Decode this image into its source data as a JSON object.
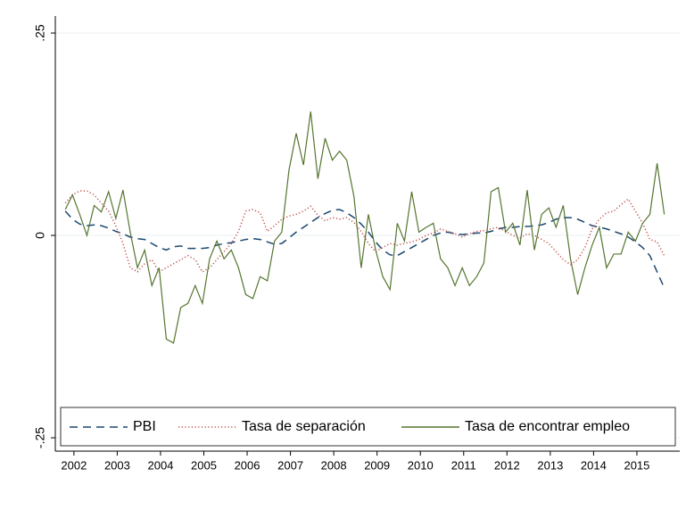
{
  "chart_data": {
    "type": "line",
    "x": [
      2001.8,
      2001.967,
      2002.133,
      2002.3,
      2002.467,
      2002.633,
      2002.8,
      2002.967,
      2003.133,
      2003.3,
      2003.467,
      2003.633,
      2003.8,
      2003.967,
      2004.133,
      2004.3,
      2004.467,
      2004.633,
      2004.8,
      2004.967,
      2005.133,
      2005.3,
      2005.467,
      2005.633,
      2005.8,
      2005.967,
      2006.133,
      2006.3,
      2006.467,
      2006.633,
      2006.8,
      2006.967,
      2007.133,
      2007.3,
      2007.467,
      2007.633,
      2007.8,
      2007.967,
      2008.133,
      2008.3,
      2008.467,
      2008.633,
      2008.8,
      2008.967,
      2009.133,
      2009.3,
      2009.467,
      2009.633,
      2009.8,
      2009.967,
      2010.133,
      2010.3,
      2010.467,
      2010.633,
      2010.8,
      2010.967,
      2011.133,
      2011.3,
      2011.467,
      2011.633,
      2011.8,
      2011.967,
      2012.133,
      2012.3,
      2012.467,
      2012.633,
      2012.8,
      2012.967,
      2013.133,
      2013.3,
      2013.467,
      2013.633,
      2013.8,
      2013.967,
      2014.133,
      2014.3,
      2014.467,
      2014.633,
      2014.8,
      2014.967,
      2015.133,
      2015.3,
      2015.467,
      2015.633
    ],
    "series": [
      {
        "name": "PBI",
        "color": "#1a476f",
        "dash": "dashed",
        "values": [
          0.03,
          0.02,
          0.014,
          0.012,
          0.013,
          0.012,
          0.009,
          0.005,
          0.002,
          -0.002,
          -0.004,
          -0.005,
          -0.01,
          -0.015,
          -0.018,
          -0.014,
          -0.013,
          -0.016,
          -0.016,
          -0.016,
          -0.015,
          -0.012,
          -0.01,
          -0.009,
          -0.007,
          -0.005,
          -0.004,
          -0.005,
          -0.008,
          -0.011,
          -0.01,
          -0.003,
          0.004,
          0.01,
          0.016,
          0.022,
          0.027,
          0.031,
          0.032,
          0.028,
          0.022,
          0.014,
          0.004,
          -0.008,
          -0.018,
          -0.024,
          -0.025,
          -0.02,
          -0.015,
          -0.01,
          -0.005,
          0,
          0.003,
          0.004,
          0.002,
          0.001,
          0.002,
          0.003,
          0.003,
          0.005,
          0.008,
          0.01,
          0.01,
          0.011,
          0.011,
          0.012,
          0.013,
          0.016,
          0.02,
          0.022,
          0.022,
          0.02,
          0.016,
          0.012,
          0.01,
          0.008,
          0.005,
          0.002,
          -0.002,
          -0.008,
          -0.015,
          -0.025,
          -0.045,
          -0.065
        ]
      },
      {
        "name": "Tasa de separación",
        "color": "#c0504d",
        "dash": "dotted",
        "values": [
          0.04,
          0.05,
          0.055,
          0.055,
          0.05,
          0.04,
          0.03,
          0.012,
          -0.01,
          -0.04,
          -0.045,
          -0.035,
          -0.03,
          -0.045,
          -0.04,
          -0.035,
          -0.03,
          -0.025,
          -0.03,
          -0.045,
          -0.04,
          -0.03,
          -0.02,
          -0.01,
          0.005,
          0.03,
          0.032,
          0.028,
          0.005,
          0.012,
          0.02,
          0.024,
          0.026,
          0.03,
          0.036,
          0.025,
          0.018,
          0.022,
          0.02,
          0.022,
          0.016,
          0.005,
          -0.01,
          -0.02,
          -0.015,
          -0.01,
          -0.012,
          -0.01,
          -0.008,
          -0.005,
          0,
          0.003,
          0.008,
          0.005,
          0.002,
          -0.002,
          0.002,
          0.005,
          0.006,
          0.008,
          0.01,
          0.005,
          0,
          -0.003,
          0.002,
          0,
          -0.005,
          -0.01,
          -0.02,
          -0.03,
          -0.036,
          -0.03,
          -0.015,
          0.008,
          0.02,
          0.028,
          0.03,
          0.038,
          0.045,
          0.03,
          0.015,
          -0.005,
          -0.008,
          -0.025
        ]
      },
      {
        "name": "Tasa de encontrar empleo",
        "color": "#55752f",
        "dash": "solid",
        "values": [
          0.032,
          0.05,
          0.026,
          0,
          0.037,
          0.029,
          0.054,
          0.021,
          0.056,
          0.004,
          -0.04,
          -0.018,
          -0.062,
          -0.04,
          -0.128,
          -0.133,
          -0.089,
          -0.084,
          -0.062,
          -0.084,
          -0.029,
          -0.007,
          -0.029,
          -0.018,
          -0.04,
          -0.073,
          -0.078,
          -0.051,
          -0.056,
          -0.007,
          0.004,
          0.081,
          0.126,
          0.087,
          0.153,
          0.07,
          0.12,
          0.093,
          0.104,
          0.093,
          0.048,
          -0.04,
          0.026,
          -0.018,
          -0.051,
          -0.067,
          0.015,
          -0.007,
          0.054,
          0.004,
          0.01,
          0.015,
          -0.029,
          -0.04,
          -0.062,
          -0.04,
          -0.062,
          -0.051,
          -0.034,
          0.054,
          0.059,
          0.004,
          0.015,
          -0.012,
          0.056,
          -0.018,
          0.026,
          0.034,
          0.01,
          0.037,
          -0.029,
          -0.073,
          -0.04,
          -0.012,
          0.01,
          -0.04,
          -0.023,
          -0.023,
          0.004,
          -0.007,
          0.015,
          0.026,
          0.089,
          0.026
        ]
      }
    ],
    "xlim": [
      2001.57,
      2015.99
    ],
    "xticks": [
      2002,
      2003,
      2004,
      2005,
      2006,
      2007,
      2008,
      2009,
      2010,
      2011,
      2012,
      2013,
      2014,
      2015
    ],
    "ylim": [
      -0.2665,
      0.271
    ],
    "yticks": [
      {
        "value": -0.25,
        "label": "-.25"
      },
      {
        "value": 0,
        "label": "0"
      },
      {
        "value": 0.25,
        "label": ".25"
      }
    ],
    "grid": true,
    "legend": "bottom"
  }
}
